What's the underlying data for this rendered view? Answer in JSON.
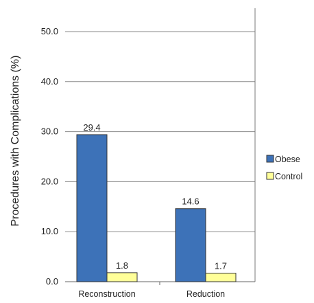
{
  "chart_data": {
    "type": "bar",
    "categories": [
      "Reconstruction",
      "Reduction"
    ],
    "series": [
      {
        "name": "Obese",
        "values": [
          29.4,
          14.6
        ],
        "color": "#3d72b8"
      },
      {
        "name": "Control",
        "values": [
          1.8,
          1.7
        ],
        "color": "#ffff99"
      }
    ],
    "data_labels": [
      [
        "29.4",
        "14.6"
      ],
      [
        "1.8",
        "1.7"
      ]
    ],
    "ylabel": "Procedures with Complications (%)",
    "xlabel": "",
    "ylim": [
      0,
      50
    ],
    "yticks": [
      "0.0",
      "10.0",
      "20.0",
      "30.0",
      "40.0",
      "50.0"
    ],
    "grid": true,
    "legend_position": "right"
  }
}
